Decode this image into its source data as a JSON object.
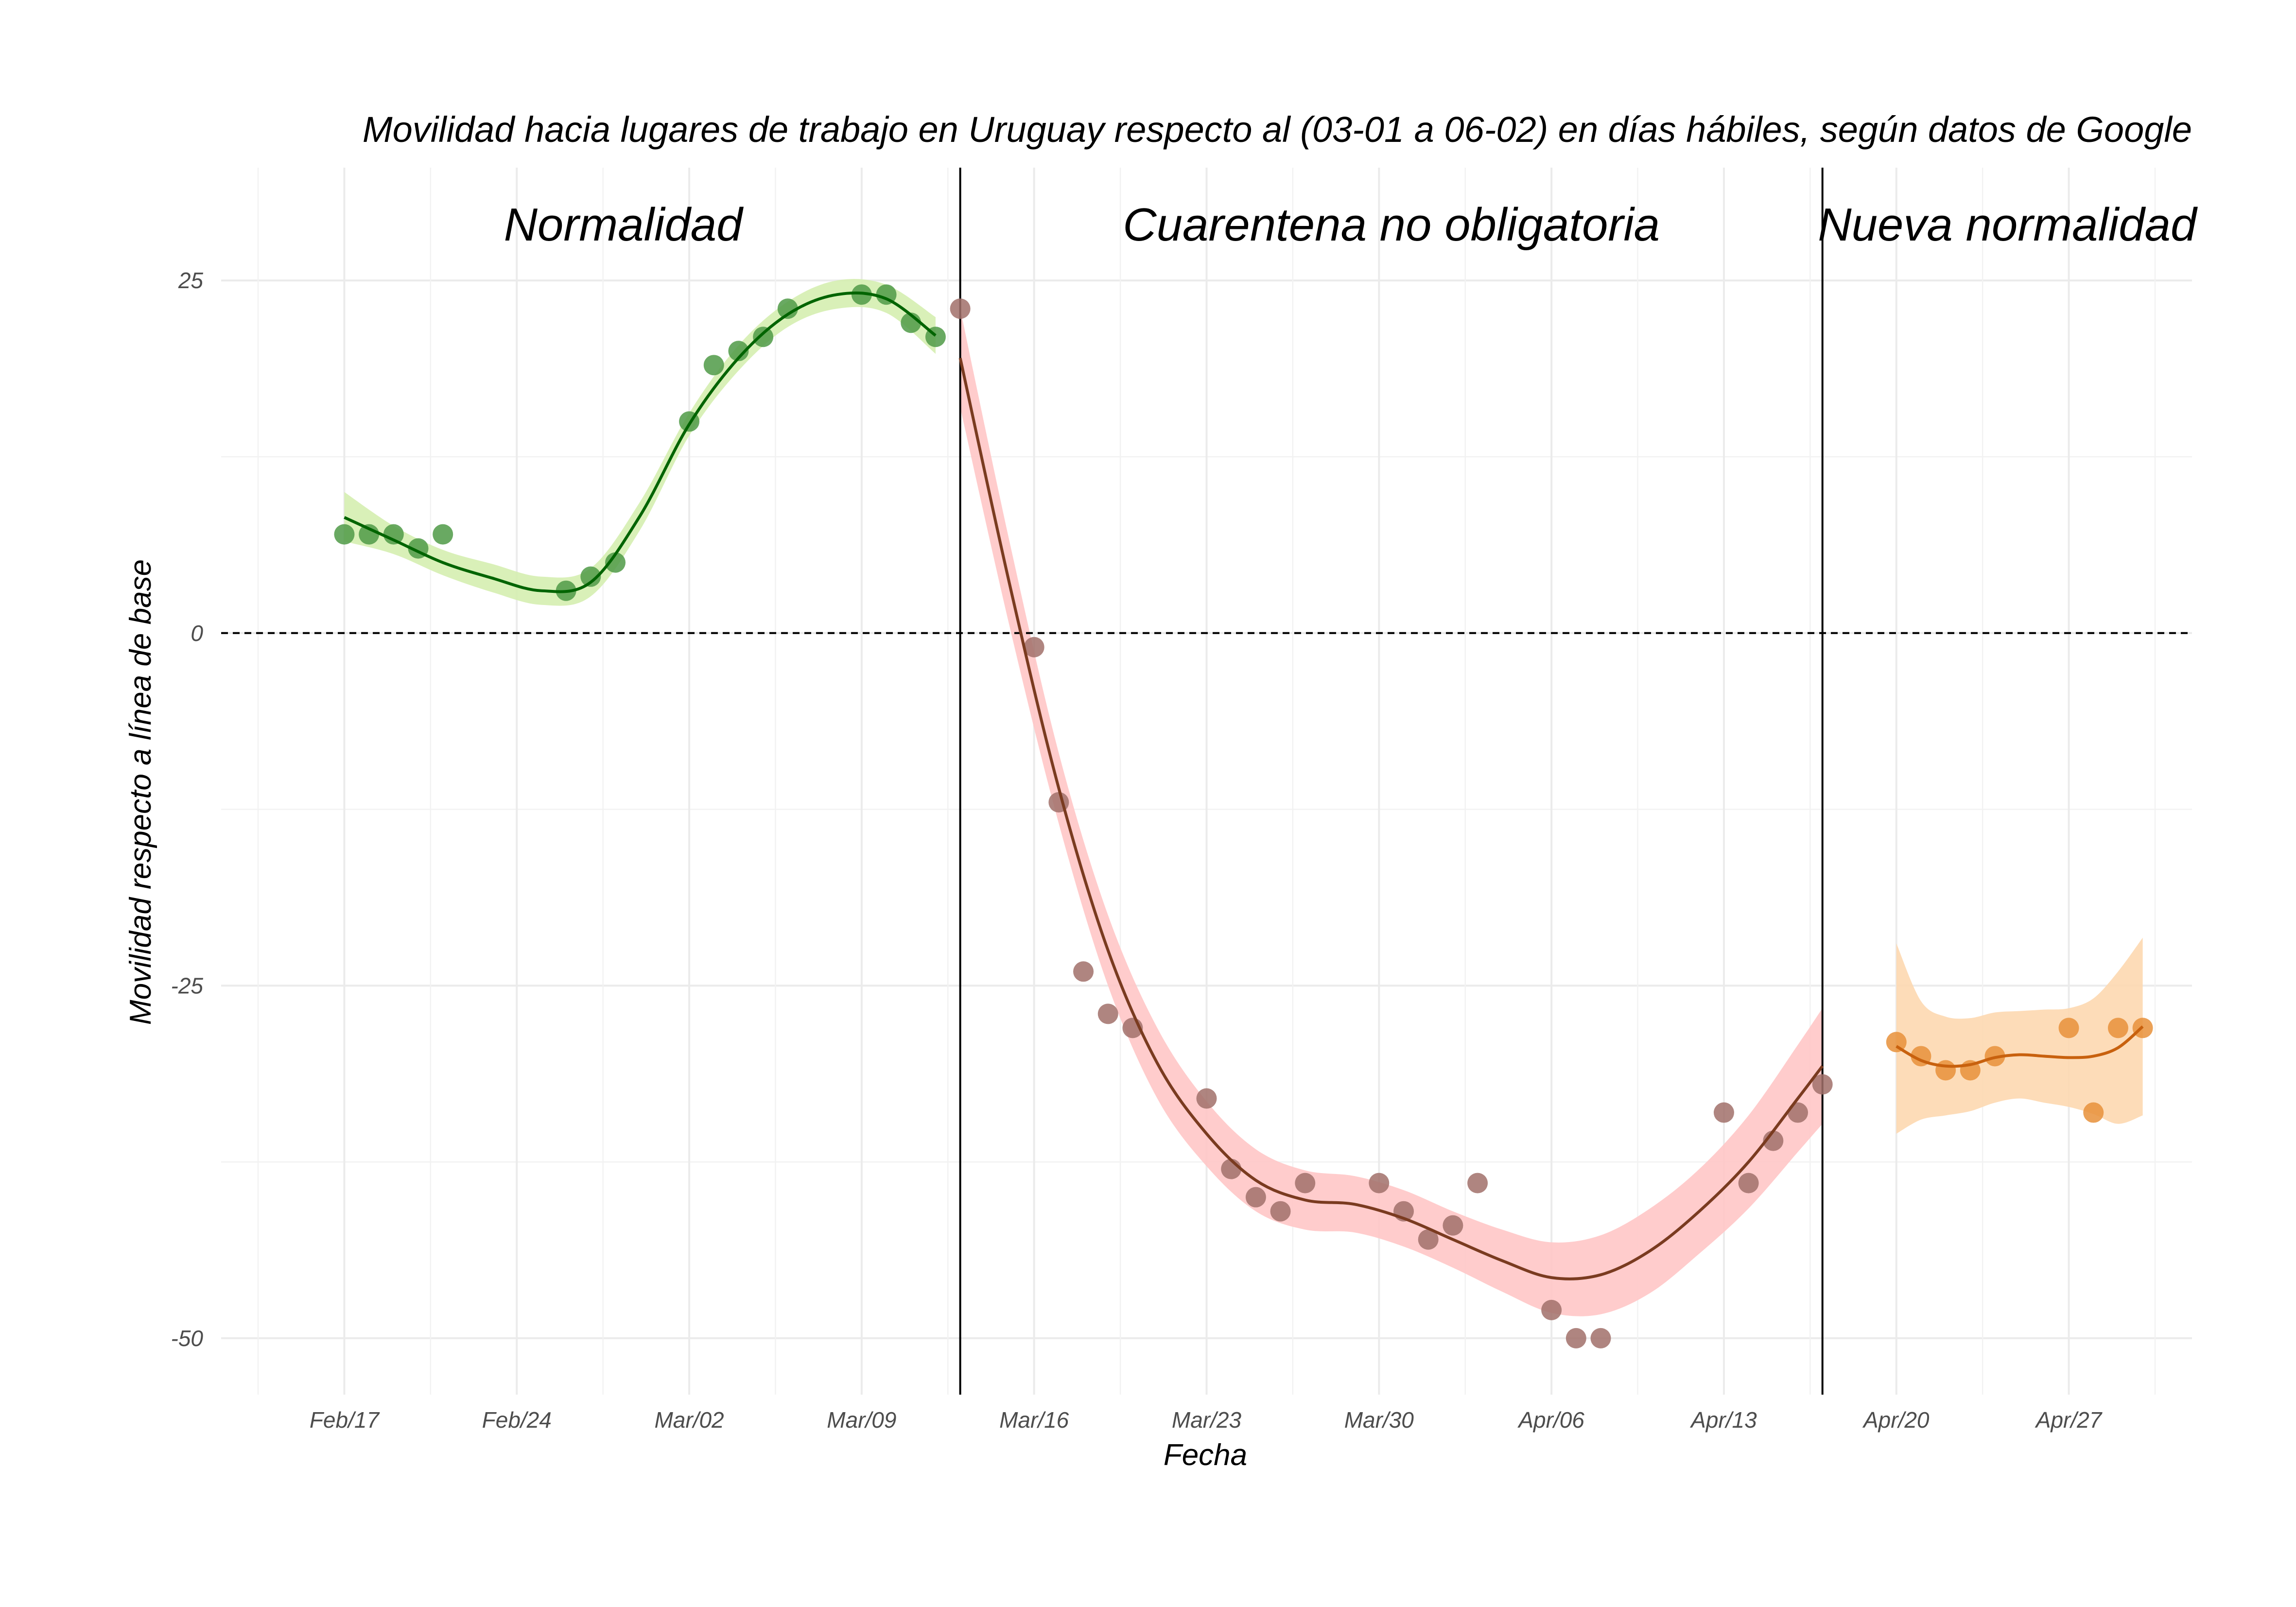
{
  "chart_data": {
    "type": "scatter",
    "title": "Movilidad hacia lugares de trabajo en Uruguay respecto al (03-01 a 06-02) en días hábiles, según datos de Google",
    "xlabel": "Fecha",
    "ylabel": "Movilidad respecto a línea de base",
    "xlim": [
      "2020-02-12",
      "2020-05-02"
    ],
    "ylim": [
      -54,
      33
    ],
    "yticks": [
      25,
      0,
      -25,
      -50
    ],
    "xticks": [
      {
        "date": "2020-02-17",
        "label": "Feb/17"
      },
      {
        "date": "2020-02-24",
        "label": "Feb/24"
      },
      {
        "date": "2020-03-02",
        "label": "Mar/02"
      },
      {
        "date": "2020-03-09",
        "label": "Mar/09"
      },
      {
        "date": "2020-03-16",
        "label": "Mar/16"
      },
      {
        "date": "2020-03-23",
        "label": "Mar/23"
      },
      {
        "date": "2020-03-30",
        "label": "Mar/30"
      },
      {
        "date": "2020-04-06",
        "label": "Apr/06"
      },
      {
        "date": "2020-04-13",
        "label": "Apr/13"
      },
      {
        "date": "2020-04-20",
        "label": "Apr/20"
      },
      {
        "date": "2020-04-27",
        "label": "Apr/27"
      }
    ],
    "reference_line_y": 0,
    "phase_boundaries": [
      "2020-03-13",
      "2020-04-17"
    ],
    "grid": true,
    "legend": "none",
    "series": [
      {
        "label": "Normalidad",
        "point_color": "#4f9a47",
        "line_color": "#006400",
        "band_color": "#d5eeb0",
        "points": [
          {
            "x": "2020-02-17",
            "y": 7
          },
          {
            "x": "2020-02-18",
            "y": 7
          },
          {
            "x": "2020-02-19",
            "y": 7
          },
          {
            "x": "2020-02-20",
            "y": 6
          },
          {
            "x": "2020-02-21",
            "y": 7
          },
          {
            "x": "2020-02-26",
            "y": 3
          },
          {
            "x": "2020-02-27",
            "y": 4
          },
          {
            "x": "2020-02-28",
            "y": 5
          },
          {
            "x": "2020-03-02",
            "y": 15
          },
          {
            "x": "2020-03-03",
            "y": 19
          },
          {
            "x": "2020-03-04",
            "y": 20
          },
          {
            "x": "2020-03-05",
            "y": 21
          },
          {
            "x": "2020-03-06",
            "y": 23
          },
          {
            "x": "2020-03-09",
            "y": 24
          },
          {
            "x": "2020-03-10",
            "y": 24
          },
          {
            "x": "2020-03-11",
            "y": 22
          },
          {
            "x": "2020-03-12",
            "y": 21
          }
        ],
        "smooth": [
          {
            "x": "2020-02-17",
            "y": 8.2,
            "lo": 6.5,
            "hi": 10.0
          },
          {
            "x": "2020-02-19",
            "y": 6.6,
            "lo": 5.6,
            "hi": 7.6
          },
          {
            "x": "2020-02-21",
            "y": 5.0,
            "lo": 4.1,
            "hi": 5.9
          },
          {
            "x": "2020-02-23",
            "y": 3.9,
            "lo": 2.9,
            "hi": 4.9
          },
          {
            "x": "2020-02-25",
            "y": 3.0,
            "lo": 2.0,
            "hi": 4.0
          },
          {
            "x": "2020-02-27",
            "y": 3.6,
            "lo": 2.6,
            "hi": 4.6
          },
          {
            "x": "2020-02-29",
            "y": 8.3,
            "lo": 7.3,
            "hi": 9.3
          },
          {
            "x": "2020-03-02",
            "y": 14.8,
            "lo": 14.0,
            "hi": 15.6
          },
          {
            "x": "2020-03-04",
            "y": 19.5,
            "lo": 18.6,
            "hi": 20.4
          },
          {
            "x": "2020-03-06",
            "y": 22.6,
            "lo": 21.7,
            "hi": 23.5
          },
          {
            "x": "2020-03-08",
            "y": 24.0,
            "lo": 23.0,
            "hi": 25.0
          },
          {
            "x": "2020-03-10",
            "y": 23.7,
            "lo": 22.7,
            "hi": 24.7
          },
          {
            "x": "2020-03-12",
            "y": 21.1,
            "lo": 19.8,
            "hi": 22.4
          }
        ]
      },
      {
        "label": "Cuarentena no obligatoria",
        "point_color": "#a1706a",
        "line_color": "#7a3b20",
        "band_color": "#ffc6c6",
        "points": [
          {
            "x": "2020-03-13",
            "y": 23
          },
          {
            "x": "2020-03-16",
            "y": -1
          },
          {
            "x": "2020-03-17",
            "y": -12
          },
          {
            "x": "2020-03-18",
            "y": -24
          },
          {
            "x": "2020-03-19",
            "y": -27
          },
          {
            "x": "2020-03-20",
            "y": -28
          },
          {
            "x": "2020-03-23",
            "y": -33
          },
          {
            "x": "2020-03-24",
            "y": -38
          },
          {
            "x": "2020-03-25",
            "y": -40
          },
          {
            "x": "2020-03-26",
            "y": -41
          },
          {
            "x": "2020-03-27",
            "y": -39
          },
          {
            "x": "2020-03-30",
            "y": -39
          },
          {
            "x": "2020-03-31",
            "y": -41
          },
          {
            "x": "2020-04-01",
            "y": -43
          },
          {
            "x": "2020-04-02",
            "y": -42
          },
          {
            "x": "2020-04-03",
            "y": -39
          },
          {
            "x": "2020-04-06",
            "y": -48
          },
          {
            "x": "2020-04-07",
            "y": -50
          },
          {
            "x": "2020-04-08",
            "y": -50
          },
          {
            "x": "2020-04-13",
            "y": -34
          },
          {
            "x": "2020-04-14",
            "y": -39
          },
          {
            "x": "2020-04-15",
            "y": -36
          },
          {
            "x": "2020-04-16",
            "y": -34
          },
          {
            "x": "2020-04-17",
            "y": -32
          }
        ],
        "smooth": [
          {
            "x": "2020-03-13",
            "y": 19.5,
            "lo": 16.0,
            "hi": 23.0
          },
          {
            "x": "2020-03-15",
            "y": 3.5,
            "lo": 0.5,
            "hi": 6.5
          },
          {
            "x": "2020-03-17",
            "y": -11.0,
            "lo": -13.5,
            "hi": -8.5
          },
          {
            "x": "2020-03-19",
            "y": -22.5,
            "lo": -25.0,
            "hi": -20.0
          },
          {
            "x": "2020-03-21",
            "y": -30.5,
            "lo": -33.0,
            "hi": -28.0
          },
          {
            "x": "2020-03-23",
            "y": -35.5,
            "lo": -37.8,
            "hi": -33.2
          },
          {
            "x": "2020-03-25",
            "y": -38.8,
            "lo": -41.0,
            "hi": -36.6
          },
          {
            "x": "2020-03-27",
            "y": -40.2,
            "lo": -42.3,
            "hi": -38.1
          },
          {
            "x": "2020-03-29",
            "y": -40.5,
            "lo": -42.5,
            "hi": -38.5
          },
          {
            "x": "2020-03-31",
            "y": -41.5,
            "lo": -43.5,
            "hi": -39.5
          },
          {
            "x": "2020-04-02",
            "y": -43.0,
            "lo": -45.0,
            "hi": -41.0
          },
          {
            "x": "2020-04-04",
            "y": -44.5,
            "lo": -46.7,
            "hi": -42.3
          },
          {
            "x": "2020-04-06",
            "y": -45.7,
            "lo": -48.2,
            "hi": -43.2
          },
          {
            "x": "2020-04-08",
            "y": -45.5,
            "lo": -48.3,
            "hi": -42.7
          },
          {
            "x": "2020-04-10",
            "y": -43.8,
            "lo": -46.8,
            "hi": -40.8
          },
          {
            "x": "2020-04-12",
            "y": -41.0,
            "lo": -44.0,
            "hi": -38.0
          },
          {
            "x": "2020-04-14",
            "y": -37.5,
            "lo": -40.8,
            "hi": -34.2
          },
          {
            "x": "2020-04-16",
            "y": -33.0,
            "lo": -36.8,
            "hi": -29.2
          },
          {
            "x": "2020-04-17",
            "y": -30.7,
            "lo": -34.8,
            "hi": -26.6
          }
        ]
      },
      {
        "label": "Nueva normalidad",
        "point_color": "#e8913a",
        "line_color": "#c8610e",
        "band_color": "#fdd8b0",
        "points": [
          {
            "x": "2020-04-20",
            "y": -29
          },
          {
            "x": "2020-04-21",
            "y": -30
          },
          {
            "x": "2020-04-22",
            "y": -31
          },
          {
            "x": "2020-04-23",
            "y": -31
          },
          {
            "x": "2020-04-24",
            "y": -30
          },
          {
            "x": "2020-04-27",
            "y": -28
          },
          {
            "x": "2020-04-28",
            "y": -34
          },
          {
            "x": "2020-04-29",
            "y": -28
          },
          {
            "x": "2020-04-30",
            "y": -28
          }
        ],
        "smooth": [
          {
            "x": "2020-04-20",
            "y": -29.3,
            "lo": -35.5,
            "hi": -22.0
          },
          {
            "x": "2020-04-21",
            "y": -30.3,
            "lo": -34.5,
            "hi": -26.1
          },
          {
            "x": "2020-04-22",
            "y": -30.7,
            "lo": -34.2,
            "hi": -27.2
          },
          {
            "x": "2020-04-23",
            "y": -30.6,
            "lo": -33.9,
            "hi": -27.3
          },
          {
            "x": "2020-04-24",
            "y": -30.1,
            "lo": -33.3,
            "hi": -26.9
          },
          {
            "x": "2020-04-25",
            "y": -29.9,
            "lo": -33.0,
            "hi": -26.8
          },
          {
            "x": "2020-04-26",
            "y": -30.0,
            "lo": -33.3,
            "hi": -26.7
          },
          {
            "x": "2020-04-27",
            "y": -30.1,
            "lo": -33.6,
            "hi": -26.6
          },
          {
            "x": "2020-04-28",
            "y": -30.0,
            "lo": -34.1,
            "hi": -25.9
          },
          {
            "x": "2020-04-29",
            "y": -29.4,
            "lo": -34.8,
            "hi": -24.0
          },
          {
            "x": "2020-04-30",
            "y": -27.9,
            "lo": -34.2,
            "hi": -21.6
          }
        ]
      }
    ]
  }
}
